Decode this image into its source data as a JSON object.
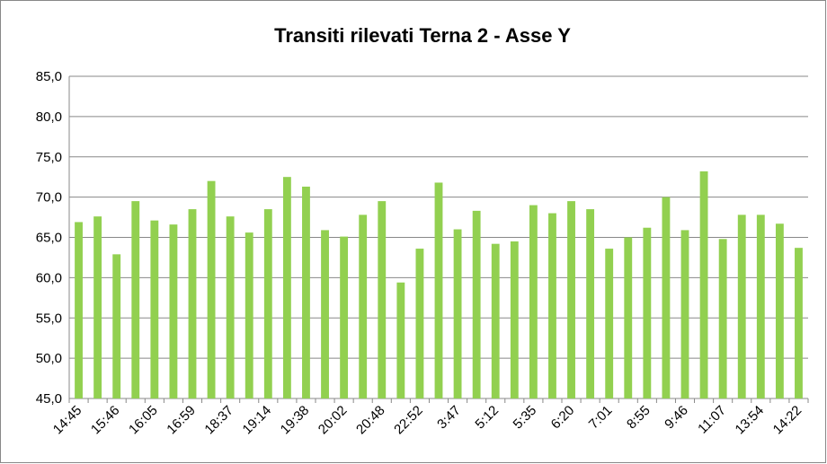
{
  "chart_data": {
    "type": "bar",
    "title": "Transiti rilevati Terna 2 - Asse Y",
    "categories": [
      "14:45",
      null,
      "15:46",
      null,
      "16:05",
      null,
      "16:59",
      null,
      "18:37",
      null,
      "19:14",
      null,
      "19:38",
      null,
      "20:02",
      null,
      "20:48",
      null,
      "22:52",
      null,
      "3:47",
      null,
      "5:12",
      null,
      "5:35",
      null,
      "6:20",
      null,
      "7:01",
      null,
      "8:55",
      null,
      "9:46",
      null,
      "11:07",
      null,
      "13:54",
      null,
      "14:22"
    ],
    "values": [
      66.9,
      67.6,
      62.9,
      69.5,
      67.1,
      66.6,
      68.5,
      72.0,
      67.6,
      65.6,
      68.5,
      72.5,
      71.3,
      65.9,
      65.1,
      67.8,
      69.5,
      59.4,
      63.6,
      71.8,
      66.0,
      68.3,
      64.2,
      64.5,
      69.0,
      68.0,
      69.5,
      68.5,
      63.6,
      65.0,
      66.2,
      70.0,
      65.9,
      73.2,
      64.8,
      67.8,
      67.8,
      66.7,
      63.7
    ],
    "color": "#92d050",
    "ylim": [
      45,
      85
    ],
    "yticks": [
      {
        "value": 45,
        "label": "45,0"
      },
      {
        "value": 50,
        "label": "50,0"
      },
      {
        "value": 55,
        "label": "55,0"
      },
      {
        "value": 60,
        "label": "60,0"
      },
      {
        "value": 65,
        "label": "65,0"
      },
      {
        "value": 70,
        "label": "70,0"
      },
      {
        "value": 75,
        "label": "75,0"
      },
      {
        "value": 80,
        "label": "80,0"
      },
      {
        "value": 85,
        "label": "85,0"
      }
    ],
    "grid": true
  }
}
